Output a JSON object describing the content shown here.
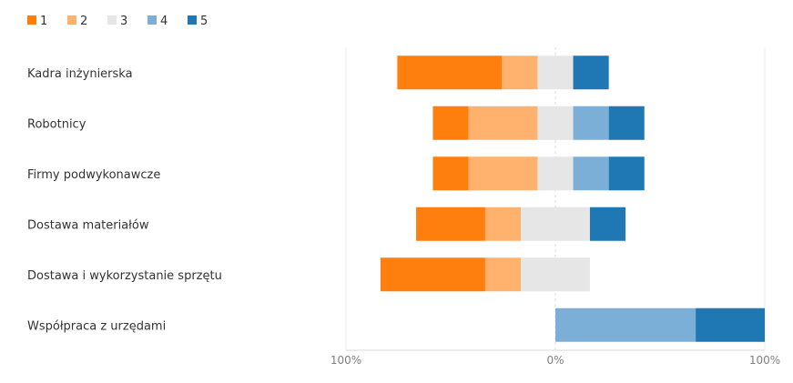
{
  "chart_data": {
    "type": "bar",
    "orientation": "horizontal",
    "stacking": "diverging",
    "legend_position": "top-left",
    "grid": true,
    "xlim": [
      -100,
      100
    ],
    "x_ticks": [
      {
        "value": -100,
        "label": "100%"
      },
      {
        "value": 0,
        "label": "0%"
      },
      {
        "value": 100,
        "label": "100%"
      }
    ],
    "categories": [
      "Kadra inżynierska",
      "Robotnicy",
      "Firmy podwykonawcze",
      "Dostawa materiałów",
      "Dostawa i wykorzystanie sprzętu",
      "Współpraca z urzędami"
    ],
    "series": [
      {
        "name": "1",
        "color": "#ff7f0e",
        "values": [
          50,
          17,
          17,
          33,
          50,
          0
        ]
      },
      {
        "name": "2",
        "color": "#ffb26e",
        "values": [
          17,
          33,
          33,
          17,
          17,
          0
        ]
      },
      {
        "name": "3",
        "color": "#e6e6e6",
        "values": [
          17,
          17,
          17,
          33,
          33,
          0
        ]
      },
      {
        "name": "4",
        "color": "#7bafd8",
        "values": [
          0,
          17,
          17,
          0,
          0,
          67
        ]
      },
      {
        "name": "5",
        "color": "#1f77b4",
        "values": [
          17,
          17,
          17,
          17,
          0,
          33
        ]
      }
    ]
  }
}
